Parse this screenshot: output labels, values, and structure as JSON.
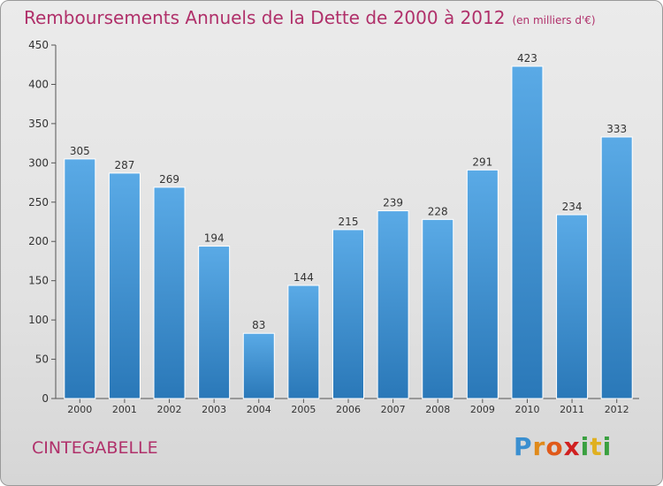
{
  "title": "Remboursements Annuels de la Dette de 2000 à 2012",
  "unit": "(en milliers d'€)",
  "commune": "CINTEGABELLE",
  "logo": {
    "letters": [
      "P",
      "r",
      "o",
      "x",
      "i",
      "t",
      "i"
    ],
    "colors": [
      "#3a8fd0",
      "#e08a1a",
      "#e05a1a",
      "#d02020",
      "#3aa040",
      "#e0b020",
      "#3aa040"
    ]
  },
  "colors": {
    "bar_top": "#5aaae6",
    "bar_bottom": "#2a78b8",
    "title": "#b0306a"
  },
  "chart_data": {
    "type": "bar",
    "title": "Remboursements Annuels de la Dette de 2000 à 2012",
    "xlabel": "",
    "ylabel": "",
    "ylim": [
      0,
      450
    ],
    "yticks": [
      0,
      50,
      100,
      150,
      200,
      250,
      300,
      350,
      400,
      450
    ],
    "grid": false,
    "categories": [
      "2000",
      "2001",
      "2002",
      "2003",
      "2004",
      "2005",
      "2006",
      "2007",
      "2008",
      "2009",
      "2010",
      "2011",
      "2012"
    ],
    "values": [
      305,
      287,
      269,
      194,
      83,
      144,
      215,
      239,
      228,
      291,
      423,
      234,
      333
    ]
  }
}
